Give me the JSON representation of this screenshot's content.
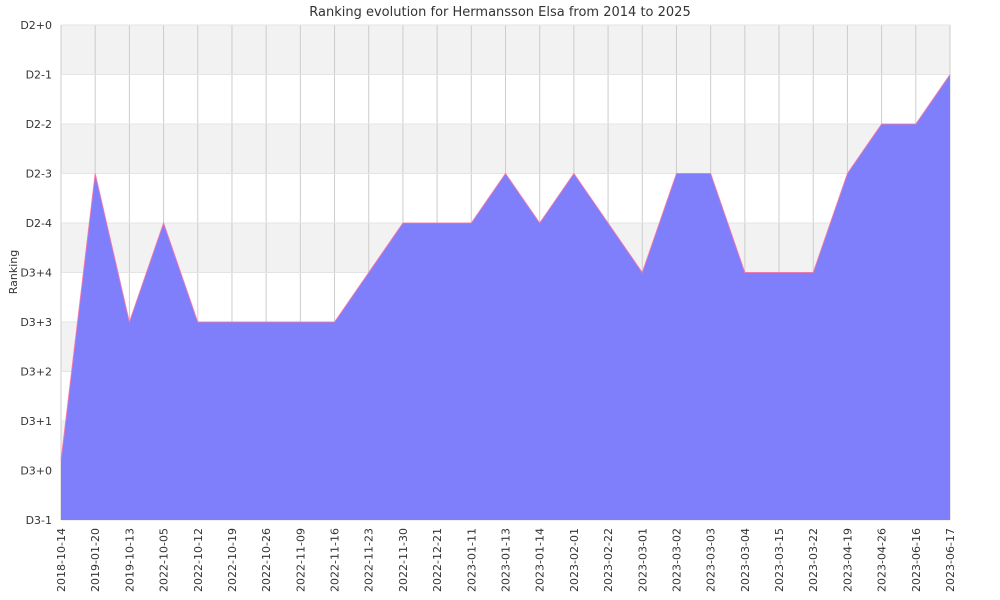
{
  "chart_data": {
    "type": "area",
    "title": "Ranking evolution for Hermansson Elsa from 2014 to 2025",
    "xlabel": "",
    "ylabel": "Ranking",
    "ylim": [
      0,
      10
    ],
    "y_tick_labels": [
      "D3-1",
      "D3+0",
      "D3+1",
      "D3+2",
      "D3+3",
      "D3+4",
      "D2-4",
      "D2-3",
      "D2-2",
      "D2-1",
      "D2+0"
    ],
    "categories": [
      "2018-10-14",
      "2019-01-20",
      "2019-10-13",
      "2022-10-05",
      "2022-10-12",
      "2022-10-19",
      "2022-10-26",
      "2022-11-09",
      "2022-11-16",
      "2022-11-23",
      "2022-11-30",
      "2022-12-21",
      "2023-01-11",
      "2023-01-13",
      "2023-01-14",
      "2023-02-01",
      "2023-02-22",
      "2023-03-01",
      "2023-03-02",
      "2023-03-03",
      "2023-03-04",
      "2023-03-15",
      "2023-03-22",
      "2023-04-19",
      "2023-04-26",
      "2023-06-16",
      "2023-06-17"
    ],
    "values": [
      1.2,
      7,
      4,
      6,
      4,
      4,
      4,
      4,
      4,
      5,
      6,
      6,
      6,
      7,
      6,
      7,
      6,
      5,
      7,
      7,
      5,
      5,
      5,
      7,
      8,
      8,
      9
    ],
    "grid": true,
    "colors": {
      "fill": "#7f7ffc",
      "line": "#ff6f9e",
      "band_alt": "#f2f2f2",
      "grid": "#cccccc"
    }
  }
}
